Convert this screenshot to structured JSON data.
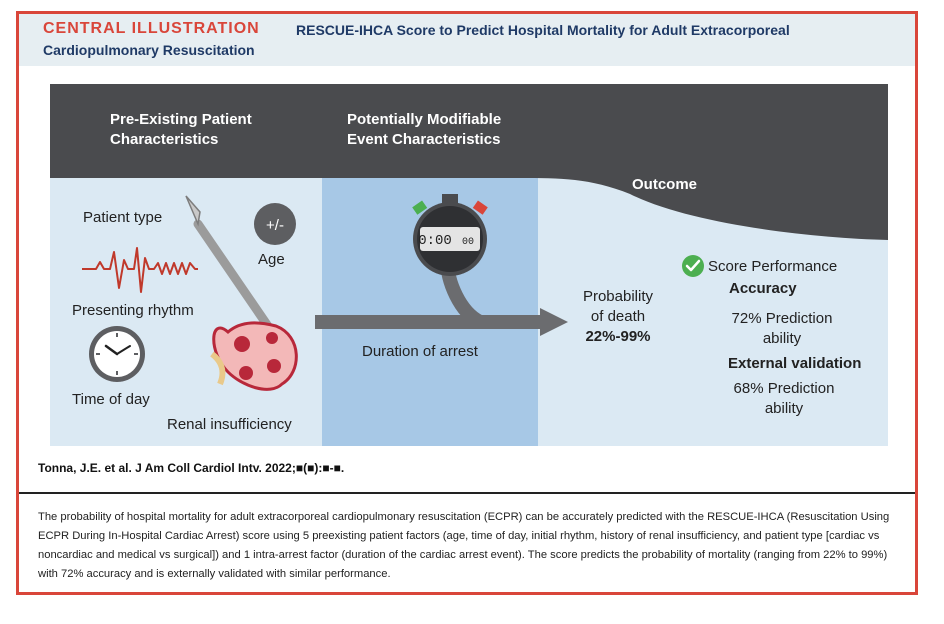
{
  "header": {
    "label": "CENTRAL ILLUSTRATION",
    "title_line1": "RESCUE-IHCA Score to Predict Hospital Mortality for Adult Extracorporeal",
    "title_line2": "Cardiopulmonary Resuscitation"
  },
  "columns": {
    "pre_existing_line1": "Pre-Existing Patient",
    "pre_existing_line2": "Characteristics",
    "modifiable_line1": "Potentially Modifiable",
    "modifiable_line2": "Event Characteristics",
    "outcome": "Outcome"
  },
  "factors": {
    "patient_type": "Patient type",
    "age": "Age",
    "age_symbol": "+/-",
    "presenting_rhythm": "Presenting rhythm",
    "time_of_day": "Time of day",
    "renal_insufficiency": "Renal insufficiency",
    "duration_of_arrest": "Duration of arrest",
    "stopwatch_display": "0:00",
    "stopwatch_hundredths": "00"
  },
  "outcome": {
    "prob_line1": "Probability",
    "prob_line2": "of death",
    "prob_range": "22%-99%",
    "score_performance": "Score Performance",
    "accuracy": "Accuracy",
    "accuracy_line1": "72% Prediction",
    "accuracy_line2": "ability",
    "external_validation": "External validation",
    "external_line1": "68% Prediction",
    "external_line2": "ability"
  },
  "citation": "Tonna, J.E. et al. J Am Coll Cardiol Intv. 2022;■(■):■-■.",
  "summary": "The probability of hospital mortality for adult extracorporeal cardiopulmonary resuscitation (ECPR) can be accurately predicted with the RESCUE-IHCA (Resuscitation Using ECPR During In-Hospital Cardiac Arrest) score using 5 preexisting patient factors (age, time of day, initial rhythm, history of renal insufficiency, and patient type [cardiac vs noncardiac and medical vs surgical]) and 1 intra-arrest factor (duration of the cardiac arrest event). The score predicts the probability of mortality (ranging from 22% to 99%) with 72% accuracy and is externally validated with similar performance.",
  "colors": {
    "accent": "#d9463a",
    "navy": "#1f3a66",
    "dark": "#4a4b4e",
    "light_blue": "#dbe9f3",
    "mid_blue": "#a7c8e6",
    "green": "#4caf50",
    "kidney": "#b8283a"
  }
}
